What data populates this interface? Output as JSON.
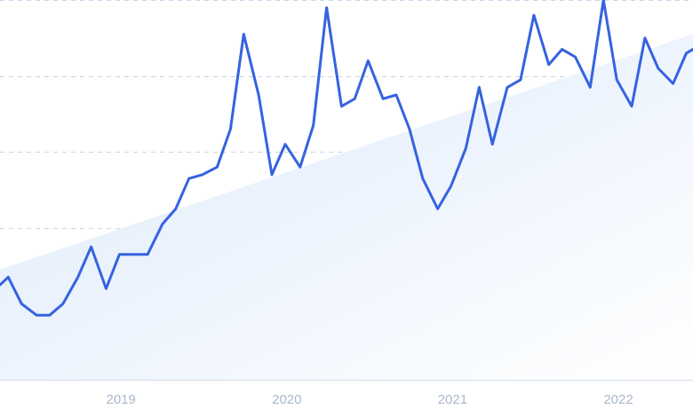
{
  "chart_data": {
    "type": "line",
    "title": "",
    "xlabel": "",
    "ylabel": "",
    "x_tick_labels": [
      "2019",
      "2020",
      "2021",
      "2022"
    ],
    "x_tick_values": [
      2019,
      2020,
      2021,
      2022
    ],
    "xlim": [
      2018.27,
      2022.45
    ],
    "ylim": [
      0,
      100
    ],
    "grid": true,
    "legend": "none",
    "series": [
      {
        "color": "#3563e0",
        "x": [
          2018.27,
          2018.32,
          2018.4,
          2018.49,
          2018.57,
          2018.65,
          2018.74,
          2018.82,
          2018.91,
          2018.99,
          2019.08,
          2019.16,
          2019.25,
          2019.33,
          2019.41,
          2019.49,
          2019.58,
          2019.66,
          2019.74,
          2019.83,
          2019.91,
          2019.99,
          2020.08,
          2020.16,
          2020.24,
          2020.33,
          2020.41,
          2020.49,
          2020.58,
          2020.66,
          2020.74,
          2020.82,
          2020.91,
          2020.99,
          2021.08,
          2021.16,
          2021.24,
          2021.33,
          2021.41,
          2021.49,
          2021.58,
          2021.66,
          2021.74,
          2021.83,
          2021.91,
          2021.99,
          2022.08,
          2022.16,
          2022.24,
          2022.33,
          2022.41,
          2022.45
        ],
        "values": [
          25,
          27,
          20,
          17,
          17,
          20,
          27,
          35,
          24,
          33,
          33,
          33,
          41,
          45,
          53,
          54,
          56,
          66,
          91,
          75,
          54,
          62,
          56,
          67,
          98,
          72,
          74,
          84,
          74,
          75,
          66,
          53,
          45,
          51,
          61,
          77,
          62,
          77,
          79,
          96,
          83,
          87,
          85,
          77,
          100,
          79,
          72,
          90,
          82,
          78,
          86,
          87
        ]
      }
    ],
    "trend_band": {
      "from": [
        2018.27,
        29
      ],
      "to": [
        2022.45,
        91
      ]
    },
    "colors": {
      "line": "#3563e0",
      "fill_start": "#dce9fb",
      "fill_end": "#ffffff",
      "grid": "#c9d6ec",
      "tick_text": "#a9b7cc"
    }
  }
}
